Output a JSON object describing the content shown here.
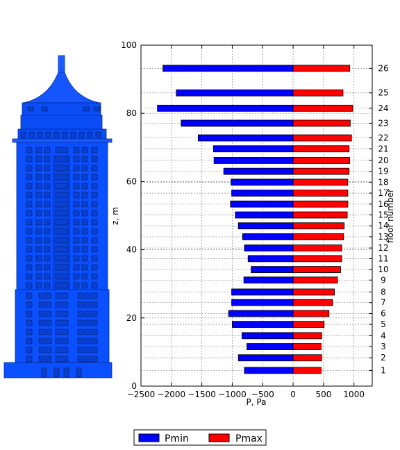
{
  "chart_data": {
    "type": "bar",
    "orientation": "horizontal",
    "title": "",
    "xlabel": "P, Pa",
    "ylabel": "z, m",
    "y2label": "floor number",
    "xlim": [
      -2500,
      1300
    ],
    "ylim": [
      0,
      100
    ],
    "xticks": [
      -2500,
      -2000,
      -1500,
      -1000,
      -500,
      0,
      500,
      1000
    ],
    "xtick_labels": [
      "−2500",
      "−2000",
      "−1500",
      "−1000",
      "−500",
      "0",
      "500",
      "1000"
    ],
    "yticks": [
      0,
      20,
      40,
      60,
      80,
      100
    ],
    "ytick_labels": [
      "0",
      "20",
      "40",
      "60",
      "80",
      "100"
    ],
    "grid": true,
    "legend_position": "bottom-center",
    "floors": [
      "1",
      "2",
      "3",
      "4",
      "5",
      "6",
      "7",
      "8",
      "9",
      "10",
      "11",
      "12",
      "13",
      "14",
      "15",
      "16",
      "17",
      "18",
      "19",
      "20",
      "21",
      "22",
      "23",
      "24",
      "25",
      "26"
    ],
    "z": [
      4.6,
      8.3,
      11.6,
      14.8,
      18.1,
      21.3,
      24.5,
      27.6,
      31.1,
      34.2,
      37.4,
      40.5,
      43.8,
      47.0,
      50.2,
      53.4,
      56.6,
      59.8,
      63.0,
      66.2,
      69.6,
      72.8,
      77.1,
      81.5,
      86.0,
      93.2
    ],
    "series": [
      {
        "name": "Pmin",
        "color": "#0000ff",
        "values": [
          -800,
          -900,
          -760,
          -840,
          -1000,
          -1060,
          -1010,
          -1010,
          -810,
          -690,
          -740,
          -800,
          -830,
          -900,
          -950,
          -1030,
          -1010,
          -1020,
          -1140,
          -1300,
          -1310,
          -1560,
          -1840,
          -2230,
          -1920,
          -2140
        ]
      },
      {
        "name": "Pmax",
        "color": "#ff0000",
        "values": [
          460,
          470,
          460,
          470,
          510,
          590,
          650,
          680,
          730,
          780,
          800,
          800,
          830,
          840,
          890,
          900,
          900,
          900,
          920,
          930,
          920,
          960,
          940,
          980,
          820,
          930
        ]
      }
    ]
  }
}
